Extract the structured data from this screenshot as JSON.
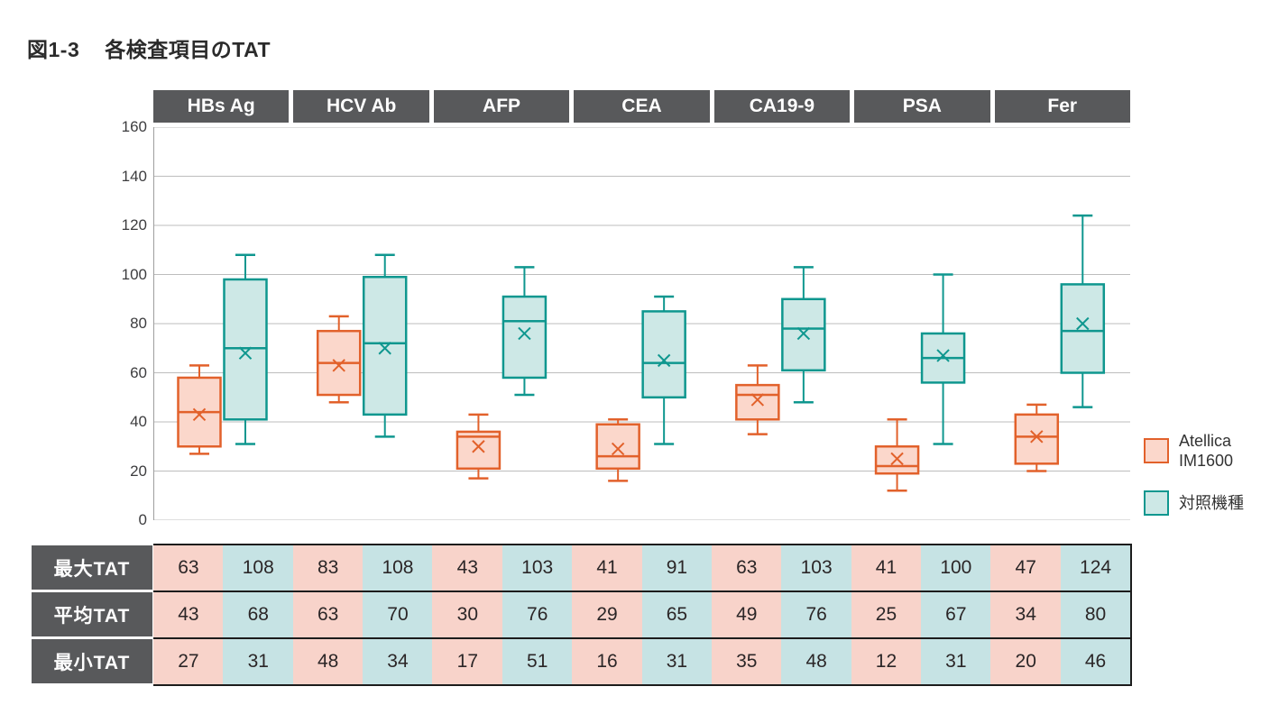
{
  "title": {
    "figure_label": "図1-3",
    "text": "各検査項目のTAT"
  },
  "chart_data": {
    "type": "boxplot",
    "title": "各検査項目のTAT",
    "categories": [
      "HBs Ag",
      "HCV Ab",
      "AFP",
      "CEA",
      "CA19-9",
      "PSA",
      "Fer"
    ],
    "ylim": [
      0,
      160
    ],
    "yticks": [
      160,
      140,
      120,
      100,
      80,
      60,
      40,
      20,
      0
    ],
    "grid": true,
    "legend_position": "right",
    "series": [
      {
        "name": "Atellica IM1600",
        "fill": "#fbd7cb",
        "stroke": "#e2612b",
        "stats": [
          {
            "min": 27,
            "q1": 30,
            "median": 44,
            "mean": 43,
            "q3": 58,
            "max": 63
          },
          {
            "min": 48,
            "q1": 51,
            "median": 64,
            "mean": 63,
            "q3": 77,
            "max": 83
          },
          {
            "min": 17,
            "q1": 21,
            "median": 34,
            "mean": 30,
            "q3": 36,
            "max": 43
          },
          {
            "min": 16,
            "q1": 21,
            "median": 26,
            "mean": 29,
            "q3": 39,
            "max": 41
          },
          {
            "min": 35,
            "q1": 41,
            "median": 51,
            "mean": 49,
            "q3": 55,
            "max": 63
          },
          {
            "min": 12,
            "q1": 19,
            "median": 22,
            "mean": 25,
            "q3": 30,
            "max": 41
          },
          {
            "min": 20,
            "q1": 23,
            "median": 34,
            "mean": 34,
            "q3": 43,
            "max": 47
          }
        ]
      },
      {
        "name": "対照機種",
        "fill": "#cde8e6",
        "stroke": "#0f978f",
        "stats": [
          {
            "min": 31,
            "q1": 41,
            "median": 70,
            "mean": 68,
            "q3": 98,
            "max": 108
          },
          {
            "min": 34,
            "q1": 43,
            "median": 72,
            "mean": 70,
            "q3": 99,
            "max": 108
          },
          {
            "min": 51,
            "q1": 58,
            "median": 81,
            "mean": 76,
            "q3": 91,
            "max": 103
          },
          {
            "min": 31,
            "q1": 50,
            "median": 64,
            "mean": 65,
            "q3": 85,
            "max": 91
          },
          {
            "min": 48,
            "q1": 61,
            "median": 78,
            "mean": 76,
            "q3": 90,
            "max": 103
          },
          {
            "min": 31,
            "q1": 56,
            "median": 66,
            "mean": 67,
            "q3": 76,
            "max": 100
          },
          {
            "min": 46,
            "q1": 60,
            "median": 77,
            "mean": 80,
            "q3": 96,
            "max": 124
          }
        ]
      }
    ]
  },
  "legend": {
    "items": [
      {
        "label": "Atellica\nIM1600",
        "fill": "#fbd7cb",
        "stroke": "#e2612b"
      },
      {
        "label": "対照機種",
        "fill": "#cde8e6",
        "stroke": "#0f978f"
      }
    ]
  },
  "table": {
    "row_headers": [
      "最大TAT",
      "平均TAT",
      "最小TAT"
    ],
    "rows": {
      "max": [
        63,
        108,
        83,
        108,
        43,
        103,
        41,
        91,
        63,
        103,
        41,
        100,
        47,
        124
      ],
      "mean": [
        43,
        68,
        63,
        70,
        30,
        76,
        29,
        65,
        49,
        76,
        25,
        67,
        34,
        80
      ],
      "min": [
        27,
        31,
        48,
        34,
        17,
        51,
        16,
        31,
        35,
        48,
        12,
        31,
        20,
        46
      ]
    },
    "cell_colors": {
      "atellica": "#f8d3ca",
      "control": "#c6e3e4"
    }
  },
  "colors": {
    "header_bg": "#58595b",
    "grid": "#bdbdbd",
    "axis": "#9e9e9e",
    "text_dark": "#2b2b2b"
  }
}
